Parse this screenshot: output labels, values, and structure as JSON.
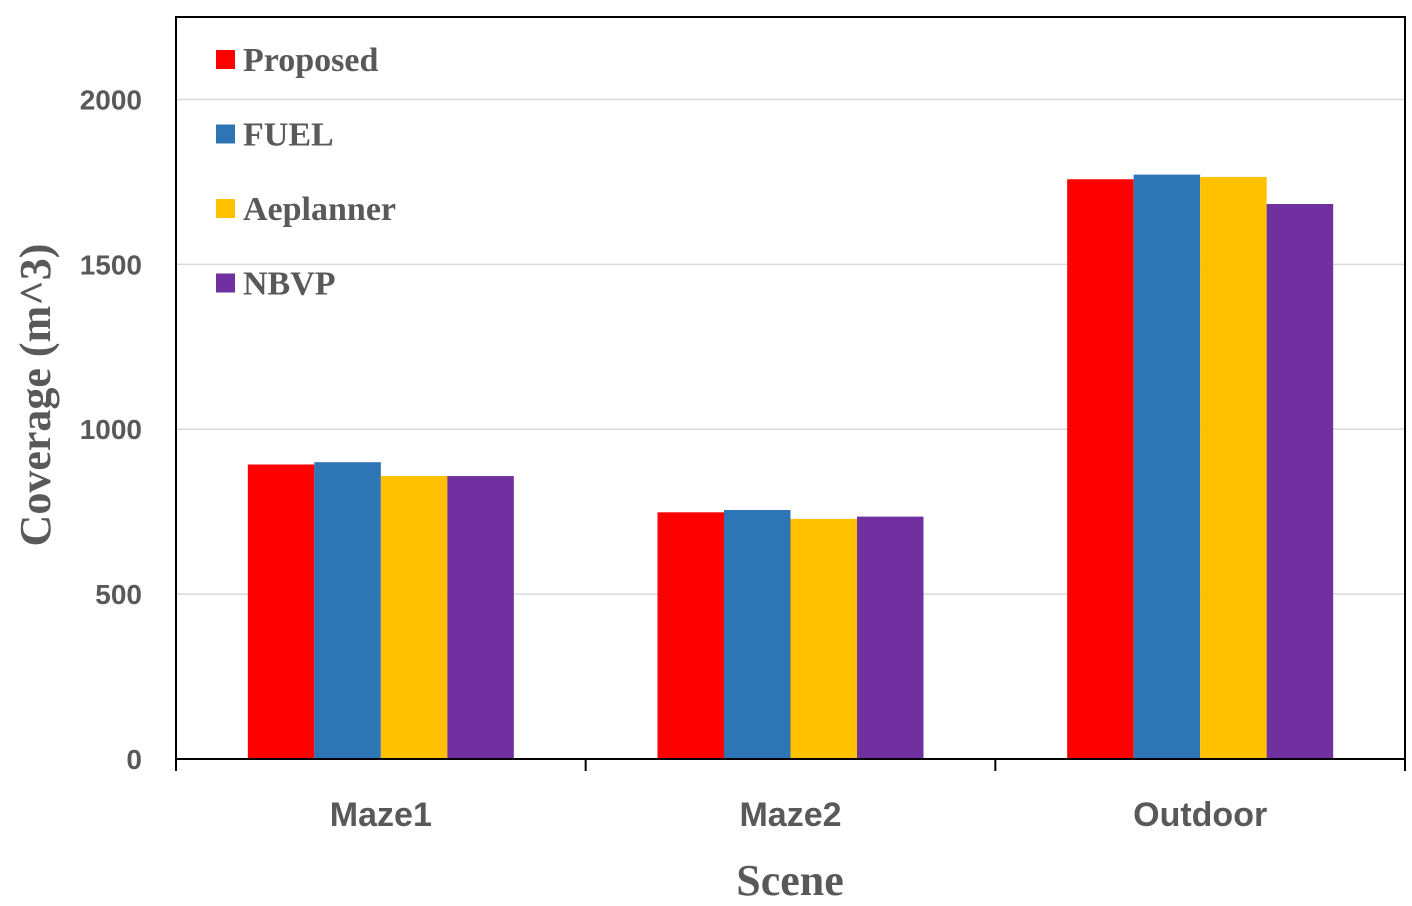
{
  "chart_data": {
    "type": "bar",
    "title": "",
    "xlabel": "Scene",
    "ylabel": "Coverage (m^3)",
    "categories": [
      "Maze1",
      "Maze2",
      "Outdoor"
    ],
    "series": [
      {
        "name": "Proposed",
        "color": "#FF0000",
        "values": [
          893,
          748,
          1758
        ]
      },
      {
        "name": "FUEL",
        "color": "#2E75B6",
        "values": [
          900,
          755,
          1772
        ]
      },
      {
        "name": "Aeplanner",
        "color": "#FFC000",
        "values": [
          858,
          728,
          1765
        ]
      },
      {
        "name": "NBVP",
        "color": "#7030A0",
        "values": [
          858,
          735,
          1683
        ]
      }
    ],
    "ylim": [
      0,
      2250
    ],
    "yticks": [
      0,
      500,
      1000,
      1500,
      2000
    ],
    "grid": true,
    "legend_position": "top-left"
  }
}
